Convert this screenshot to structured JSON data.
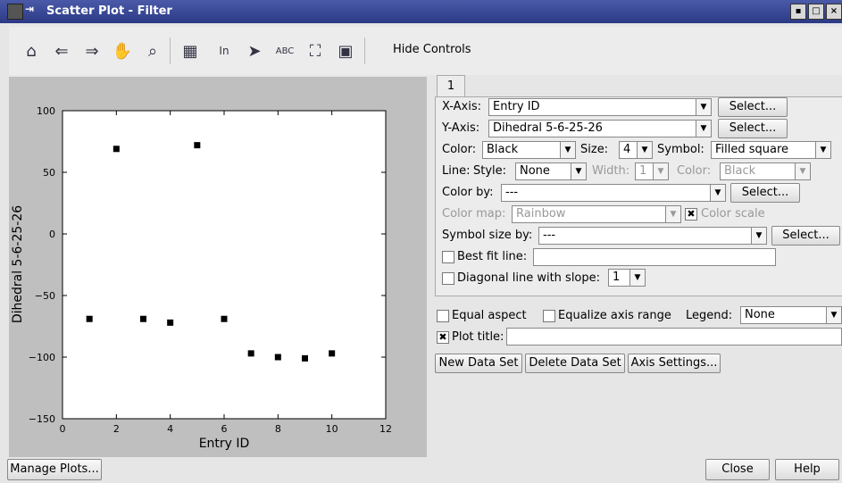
{
  "window": {
    "title": "Scatter Plot - Filter"
  },
  "toolbar": {
    "icons": [
      "home-icon",
      "back-arrow-icon",
      "forward-arrow-icon",
      "pan-hand-icon",
      "zoom-icon",
      "table-icon",
      "text-icon",
      "pointer-icon",
      "label-icon",
      "fit-icon",
      "save-icon"
    ],
    "hide_controls": "Hide Controls"
  },
  "tabs": {
    "tab1": "1"
  },
  "controls": {
    "xaxis_label": "X-Axis:",
    "xaxis_value": "Entry ID",
    "xaxis_select": "Select...",
    "yaxis_label": "Y-Axis:",
    "yaxis_value": "Dihedral 5-6-25-26",
    "yaxis_select": "Select...",
    "color_label": "Color:",
    "color_value": "Black",
    "size_label": "Size:",
    "size_value": "4",
    "symbol_label": "Symbol:",
    "symbol_value": "Filled square",
    "line_label": "Line:",
    "style_label": "Style:",
    "style_value": "None",
    "width_label": "Width:",
    "width_value": "1",
    "line_color_label": "Color:",
    "line_color_value": "Black",
    "colorby_label": "Color by:",
    "colorby_value": "---",
    "colorby_select": "Select...",
    "colormap_label": "Color map:",
    "colormap_value": "Rainbow",
    "colorscale_label": "Color scale",
    "symbolsize_label": "Symbol size by:",
    "symbolsize_value": "---",
    "symbolsize_select": "Select...",
    "bestfit_label": "Best fit line:",
    "diagonal_label": "Diagonal line with slope:",
    "diagonal_value": "1"
  },
  "bottom_controls": {
    "equal_aspect": "Equal aspect",
    "equalize_range": "Equalize axis range",
    "legend_label": "Legend:",
    "legend_value": "None",
    "plot_title_label": "Plot title:",
    "new_data_set": "New Data Set",
    "delete_data_set": "Delete Data Set",
    "axis_settings": "Axis Settings..."
  },
  "footer": {
    "manage_plots": "Manage Plots...",
    "close": "Close",
    "help": "Help"
  },
  "chart_data": {
    "type": "scatter",
    "xlabel": "Entry ID",
    "ylabel": "Dihedral 5-6-25-26",
    "xlim": [
      0,
      12
    ],
    "ylim": [
      -150,
      100
    ],
    "xticks": [
      0,
      2,
      4,
      6,
      8,
      10,
      12
    ],
    "yticks": [
      100,
      50,
      0,
      -50,
      -100,
      -150
    ],
    "x": [
      1,
      2,
      3,
      4,
      5,
      6,
      7,
      8,
      9,
      10
    ],
    "y": [
      -69,
      69,
      -69,
      -72,
      72,
      -69,
      -97,
      -100,
      -101,
      -97
    ],
    "marker": "square",
    "color": "#000000"
  }
}
